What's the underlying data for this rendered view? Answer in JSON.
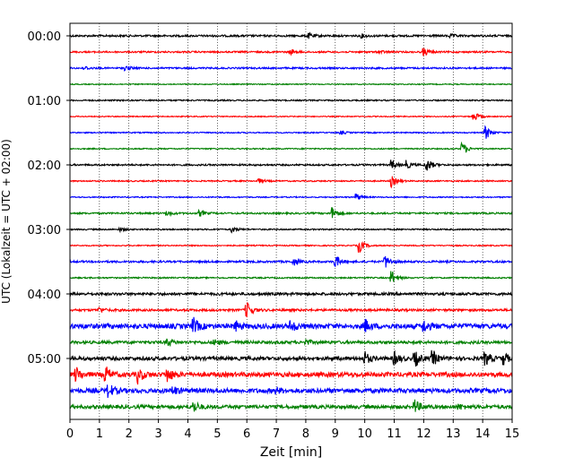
{
  "chart_data": {
    "type": "line",
    "title": "",
    "xlabel": "Zeit  [min]",
    "ylabel": "UTC (Lokalzeit = UTC + 02:00)",
    "xlim": [
      0,
      15
    ],
    "x_ticks": [
      "0",
      "1",
      "2",
      "3",
      "4",
      "5",
      "6",
      "7",
      "8",
      "9",
      "10",
      "11",
      "12",
      "13",
      "14",
      "15"
    ],
    "y_ticks": [
      "00:00",
      "01:00",
      "02:00",
      "03:00",
      "04:00",
      "05:00"
    ],
    "vertical_grid": true,
    "trace_colors": [
      "#000000",
      "#ff0000",
      "#0000ff",
      "#008000"
    ],
    "traces_per_hour": 4,
    "trace_minutes": 15,
    "traces": [
      {
        "start": "00:00",
        "color": "#000000",
        "amplitude": 0.12,
        "events": [
          [
            8.1,
            0.3
          ],
          [
            9.9,
            0.2
          ],
          [
            12.9,
            0.2
          ]
        ]
      },
      {
        "start": "00:15",
        "color": "#ff0000",
        "amplitude": 0.1,
        "events": [
          [
            7.5,
            0.3
          ],
          [
            12.0,
            0.5
          ],
          [
            10.5,
            0.2
          ]
        ]
      },
      {
        "start": "00:30",
        "color": "#0000ff",
        "amplitude": 0.1,
        "events": [
          [
            1.9,
            0.3
          ],
          [
            0.5,
            0.2
          ]
        ]
      },
      {
        "start": "00:45",
        "color": "#008000",
        "amplitude": 0.06,
        "events": []
      },
      {
        "start": "01:00",
        "color": "#000000",
        "amplitude": 0.08,
        "events": []
      },
      {
        "start": "01:15",
        "color": "#ff0000",
        "amplitude": 0.06,
        "events": [
          [
            13.7,
            0.6
          ]
        ]
      },
      {
        "start": "01:30",
        "color": "#0000ff",
        "amplitude": 0.07,
        "events": [
          [
            14.1,
            0.9
          ],
          [
            9.2,
            0.2
          ]
        ]
      },
      {
        "start": "01:45",
        "color": "#008000",
        "amplitude": 0.07,
        "events": [
          [
            13.3,
            0.9
          ]
        ]
      },
      {
        "start": "02:00",
        "color": "#000000",
        "amplitude": 0.1,
        "events": [
          [
            10.9,
            0.6
          ],
          [
            12.1,
            0.9
          ],
          [
            11.4,
            0.5
          ]
        ]
      },
      {
        "start": "02:15",
        "color": "#ff0000",
        "amplitude": 0.08,
        "events": [
          [
            6.4,
            0.3
          ],
          [
            10.9,
            0.7
          ]
        ]
      },
      {
        "start": "02:30",
        "color": "#0000ff",
        "amplitude": 0.07,
        "events": [
          [
            9.7,
            0.5
          ]
        ]
      },
      {
        "start": "02:45",
        "color": "#008000",
        "amplitude": 0.1,
        "events": [
          [
            8.9,
            0.8
          ],
          [
            4.4,
            0.4
          ],
          [
            3.3,
            0.3
          ]
        ]
      },
      {
        "start": "03:00",
        "color": "#000000",
        "amplitude": 0.08,
        "events": [
          [
            5.5,
            0.4
          ],
          [
            1.7,
            0.2
          ]
        ]
      },
      {
        "start": "03:15",
        "color": "#ff0000",
        "amplitude": 0.07,
        "events": [
          [
            9.8,
            1.0
          ]
        ]
      },
      {
        "start": "03:30",
        "color": "#0000ff",
        "amplitude": 0.12,
        "events": [
          [
            9.0,
            0.8
          ],
          [
            10.7,
            0.8
          ],
          [
            7.6,
            0.4
          ]
        ]
      },
      {
        "start": "03:45",
        "color": "#008000",
        "amplitude": 0.08,
        "events": [
          [
            10.9,
            1.0
          ]
        ]
      },
      {
        "start": "04:00",
        "color": "#000000",
        "amplitude": 0.16,
        "events": []
      },
      {
        "start": "04:15",
        "color": "#ff0000",
        "amplitude": 0.14,
        "events": [
          [
            6.0,
            1.0
          ],
          [
            1.0,
            0.3
          ]
        ]
      },
      {
        "start": "04:30",
        "color": "#0000ff",
        "amplitude": 0.3,
        "events": [
          [
            4.2,
            0.9
          ],
          [
            5.6,
            0.6
          ],
          [
            7.5,
            0.7
          ],
          [
            10.0,
            0.8
          ],
          [
            12.0,
            0.7
          ]
        ]
      },
      {
        "start": "04:45",
        "color": "#008000",
        "amplitude": 0.18,
        "events": [
          [
            3.3,
            0.5
          ],
          [
            4.9,
            0.4
          ],
          [
            8.0,
            0.3
          ]
        ]
      },
      {
        "start": "05:00",
        "color": "#000000",
        "amplitude": 0.22,
        "events": [
          [
            10.0,
            0.8
          ],
          [
            11.0,
            0.8
          ],
          [
            11.7,
            1.0
          ],
          [
            12.3,
            1.0
          ],
          [
            14.1,
            0.9
          ],
          [
            14.7,
            0.8
          ]
        ]
      },
      {
        "start": "05:15",
        "color": "#ff0000",
        "amplitude": 0.28,
        "events": [
          [
            0.2,
            0.9
          ],
          [
            1.2,
            1.0
          ],
          [
            2.3,
            1.0
          ],
          [
            3.3,
            0.9
          ]
        ]
      },
      {
        "start": "05:30",
        "color": "#0000ff",
        "amplitude": 0.28,
        "events": [
          [
            1.3,
            0.9
          ],
          [
            3.5,
            0.5
          ],
          [
            7.0,
            0.3
          ]
        ]
      },
      {
        "start": "05:45",
        "color": "#008000",
        "amplitude": 0.22,
        "events": [
          [
            4.2,
            0.7
          ],
          [
            11.7,
            0.8
          ],
          [
            13.2,
            0.3
          ]
        ]
      }
    ]
  }
}
